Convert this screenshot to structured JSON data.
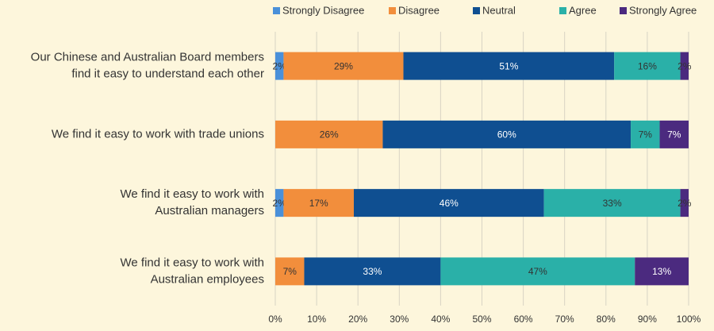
{
  "chart_data": {
    "type": "stacked-bar-horizontal",
    "categories": [
      [
        "Our Chinese and Australian Board members",
        "find it easy to understand each other"
      ],
      [
        "We find it easy to work with trade unions"
      ],
      [
        "We find it easy to work with",
        "Australian managers"
      ],
      [
        "We find it easy to work with",
        "Australian employees"
      ]
    ],
    "series": [
      {
        "name": "Strongly Disagree",
        "color": "#4a90d9",
        "values": [
          2,
          0,
          2,
          0
        ],
        "value_labels": [
          "2%",
          null,
          "2%",
          null
        ]
      },
      {
        "name": "Disagree",
        "color": "#f28e3c",
        "values": [
          29,
          26,
          17,
          7
        ],
        "value_labels": [
          "29%",
          "26%",
          "17%",
          "7%"
        ]
      },
      {
        "name": "Neutral",
        "color": "#0f4f91",
        "values": [
          51,
          60,
          46,
          33
        ],
        "value_labels": [
          "51%",
          "60%",
          "46%",
          "33%"
        ]
      },
      {
        "name": "Agree",
        "color": "#2ab0a8",
        "values": [
          16,
          7,
          33,
          47
        ],
        "value_labels": [
          "16%",
          "7%",
          "33%",
          "47%"
        ]
      },
      {
        "name": "Strongly Agree",
        "color": "#4b2a7f",
        "values": [
          2,
          7,
          2,
          13
        ],
        "value_labels": [
          "2%",
          "7%",
          "2%",
          "13%"
        ]
      }
    ],
    "xlim": [
      0,
      100
    ],
    "xticks": [
      {
        "value": 0,
        "label": "0%"
      },
      {
        "value": 10,
        "label": "10%"
      },
      {
        "value": 20,
        "label": "20%"
      },
      {
        "value": 30,
        "label": "30%"
      },
      {
        "value": 40,
        "label": "40%"
      },
      {
        "value": 50,
        "label": "50%"
      },
      {
        "value": 60,
        "label": "60%"
      },
      {
        "value": 70,
        "label": "70%"
      },
      {
        "value": 80,
        "label": "80%"
      },
      {
        "value": 90,
        "label": "90%"
      },
      {
        "value": 100,
        "label": "100%"
      }
    ],
    "grid": true,
    "legend": "top"
  }
}
